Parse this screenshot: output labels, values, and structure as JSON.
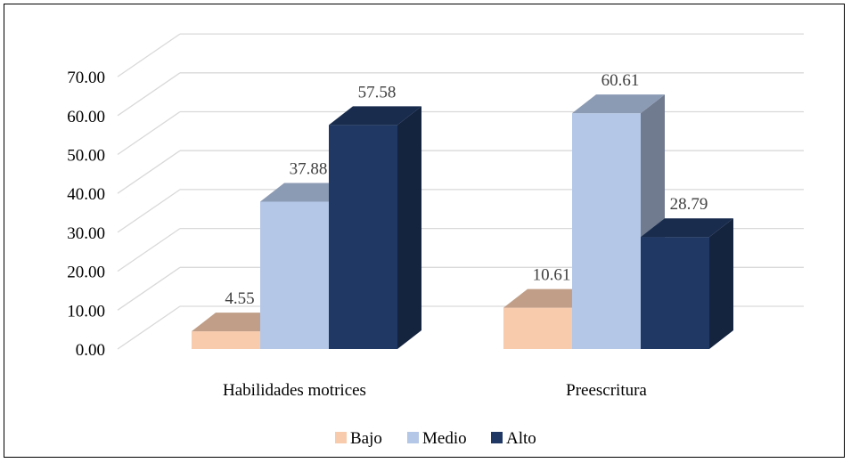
{
  "chart_data": {
    "type": "bar",
    "categories": [
      "Habilidades motrices",
      "Preescritura"
    ],
    "series": [
      {
        "name": "Bajo",
        "values": [
          4.55,
          10.61
        ]
      },
      {
        "name": "Medio",
        "values": [
          37.88,
          60.61
        ]
      },
      {
        "name": "Alto",
        "values": [
          57.58,
          28.79
        ]
      }
    ],
    "value_labels": [
      [
        "4.55",
        "10.61"
      ],
      [
        "37.88",
        "60.61"
      ],
      [
        "57.58",
        "28.79"
      ]
    ],
    "yticks": [
      "0.00",
      "10.00",
      "20.00",
      "30.00",
      "40.00",
      "50.00",
      "60.00",
      "70.00"
    ],
    "ylim": [
      0,
      70
    ],
    "title": "",
    "xlabel": "",
    "ylabel": "",
    "grid": true,
    "three_d": true,
    "legend_position": "bottom",
    "colors": {
      "Bajo": "#f8cbad",
      "Medio": "#b4c7e7",
      "Alto": "#203864",
      "grid": "#d9d9d9"
    }
  }
}
